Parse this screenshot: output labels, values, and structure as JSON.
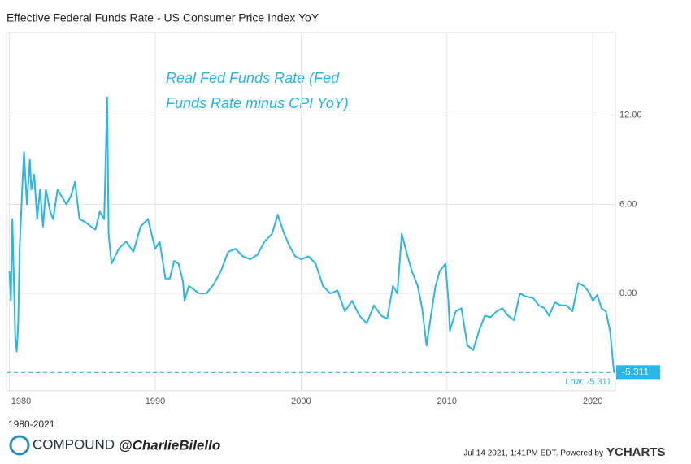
{
  "chart_data": {
    "type": "line",
    "title": "Effective Federal Funds Rate - US Consumer Price Index YoY",
    "annotation": [
      "Real Fed Funds Rate (Fed",
      "Funds Rate minus CPI YoY)"
    ],
    "range_label": "1980-2021",
    "low": -5.311,
    "low_label": "Low: -5.311",
    "xlim": [
      1979.8,
      2021.55
    ],
    "ylim": [
      -6.55,
      17.55
    ],
    "xticks": [
      1980,
      1990,
      2000,
      2010,
      2020
    ],
    "yticks": [
      {
        "value": 0,
        "label": "0.00"
      },
      {
        "value": 6,
        "label": "6.00"
      },
      {
        "value": 12,
        "label": "12.00"
      }
    ],
    "grid": true,
    "series": [
      {
        "color": "#29b6e8",
        "x": [
          1980.0,
          1980.1,
          1980.2,
          1980.3,
          1980.4,
          1980.5,
          1980.6,
          1980.7,
          1980.9,
          1981.0,
          1981.2,
          1981.4,
          1981.5,
          1981.7,
          1981.9,
          1982.1,
          1982.3,
          1982.5,
          1982.8,
          1983.0,
          1983.3,
          1983.6,
          1983.9,
          1984.2,
          1984.5,
          1984.8,
          1985.2,
          1985.6,
          1985.9,
          1986.2,
          1986.5,
          1986.7,
          1986.8,
          1987.0,
          1987.5,
          1988.0,
          1988.5,
          1989.0,
          1989.5,
          1990.0,
          1990.3,
          1990.7,
          1991.0,
          1991.3,
          1991.6,
          1991.9,
          1992.0,
          1992.3,
          1992.6,
          1993.0,
          1993.5,
          1994.0,
          1994.5,
          1995.0,
          1995.5,
          1996.0,
          1996.5,
          1997.0,
          1997.5,
          1998.0,
          1998.4,
          1998.8,
          1999.2,
          1999.6,
          2000.0,
          2000.5,
          2001.0,
          2001.5,
          2002.0,
          2002.5,
          2003.0,
          2003.5,
          2004.0,
          2004.5,
          2005.0,
          2005.5,
          2005.9,
          2006.3,
          2006.6,
          2006.9,
          2007.3,
          2007.6,
          2008.0,
          2008.3,
          2008.6,
          2008.9,
          2009.2,
          2009.5,
          2009.9,
          2010.1,
          2010.2,
          2010.6,
          2011.0,
          2011.4,
          2011.8,
          2012.2,
          2012.6,
          2013.0,
          2013.4,
          2013.8,
          2014.2,
          2014.6,
          2015.0,
          2015.4,
          2015.9,
          2016.3,
          2016.7,
          2017.0,
          2017.4,
          2017.8,
          2018.2,
          2018.6,
          2019.0,
          2019.4,
          2019.8,
          2020.0,
          2020.3,
          2020.6,
          2020.9,
          2021.2,
          2021.45
        ],
        "values": [
          1.5,
          -0.5,
          5,
          1,
          -3,
          -3.9,
          -2,
          3,
          7.5,
          9.5,
          6,
          9,
          7,
          8,
          5,
          7,
          4.5,
          7,
          5.5,
          5,
          7,
          6.5,
          6,
          6.5,
          7.5,
          5,
          4.8,
          4.5,
          4.3,
          5.5,
          5,
          13.2,
          4,
          2,
          3,
          3.5,
          2.8,
          4.5,
          5,
          3,
          3.5,
          1,
          1,
          2.2,
          2,
          0.8,
          -0.5,
          0.5,
          0.3,
          0,
          0,
          0.6,
          1.5,
          2.8,
          3,
          2.5,
          2.3,
          2.6,
          3.5,
          4,
          5.3,
          4.1,
          3.2,
          2.5,
          2.3,
          2.5,
          2,
          0.5,
          0,
          0.2,
          -1.2,
          -0.5,
          -1.5,
          -2,
          -0.8,
          -1.5,
          -1.7,
          0.5,
          0,
          4,
          2.5,
          1.5,
          0.5,
          -1,
          -3.5,
          -1.5,
          0.4,
          1.5,
          2,
          -0.5,
          -2.5,
          -1.2,
          -1,
          -3.5,
          -3.8,
          -2.5,
          -1.5,
          -1.6,
          -1.2,
          -1.0,
          -1.5,
          -1.8,
          0,
          -0.2,
          -0.3,
          -0.8,
          -1,
          -1.5,
          -0.6,
          -0.8,
          -0.8,
          -1.2,
          0.7,
          0.5,
          0,
          -0.5,
          -0.1,
          -1,
          -1.2,
          -2.6,
          -5.311
        ]
      }
    ]
  },
  "footer": {
    "brand": "COMPOUND",
    "handle": "@CharlieBilello",
    "timestamp": "Jul 14 2021, 1:41PM EDT.  Powered by",
    "provider": "YCHARTS"
  }
}
